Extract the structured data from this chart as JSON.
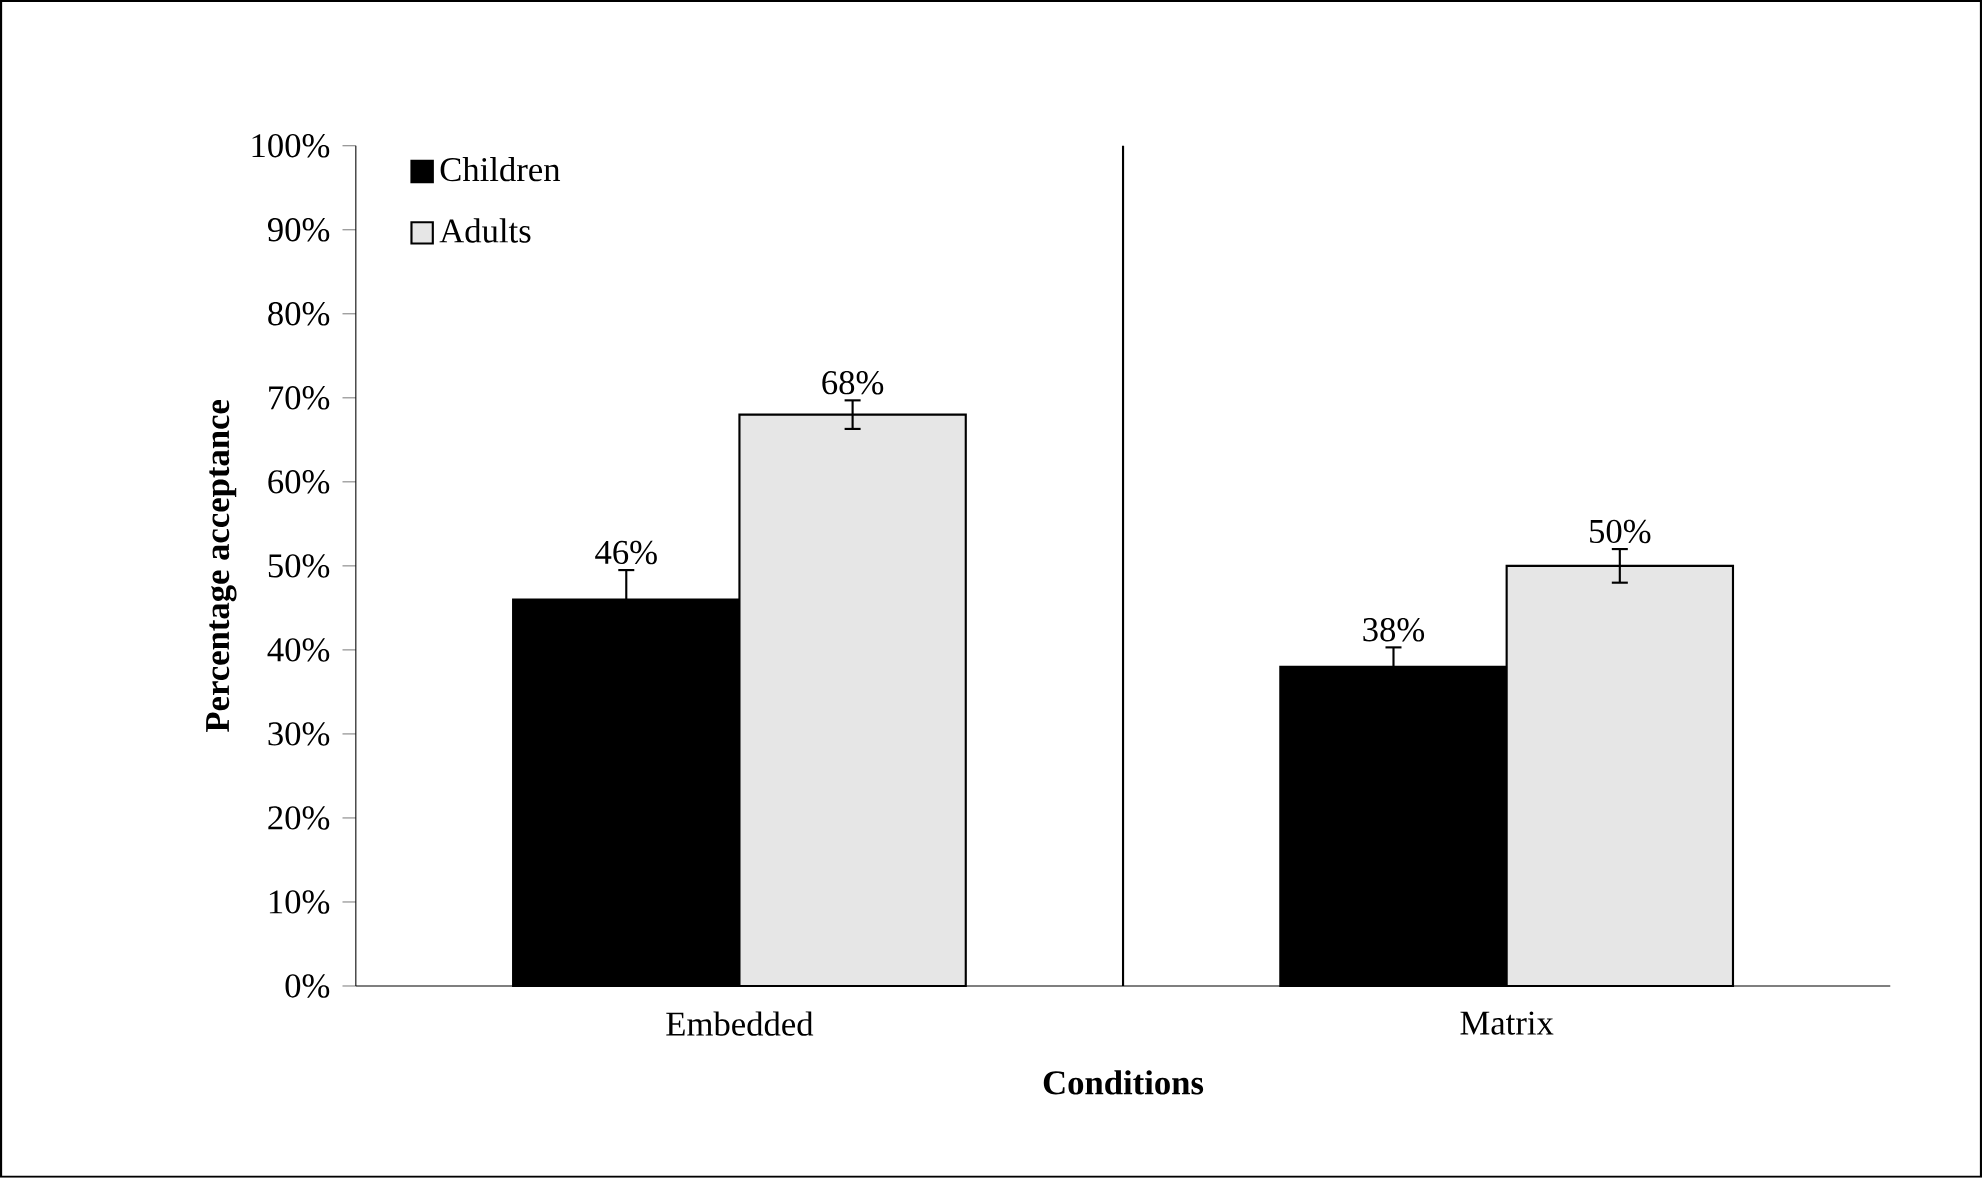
{
  "chart_data": {
    "type": "bar",
    "xlabel": "Conditions",
    "ylabel": "Percentage acceptance",
    "categories": [
      "Embedded",
      "Matrix"
    ],
    "series": [
      {
        "name": "Children",
        "color": "#000000",
        "values": [
          46,
          38
        ],
        "errors": [
          3.5,
          2.3
        ],
        "value_labels": [
          "46%",
          "38%"
        ]
      },
      {
        "name": "Adults",
        "color": "#e6e6e6",
        "values": [
          68,
          50
        ],
        "errors": [
          1.7,
          2.0
        ],
        "value_labels": [
          "68%",
          "50%"
        ]
      }
    ],
    "ylim": [
      0,
      100
    ],
    "yticks": [
      {
        "value": 0,
        "label": "0%"
      },
      {
        "value": 10,
        "label": "10%"
      },
      {
        "value": 20,
        "label": "20%"
      },
      {
        "value": 30,
        "label": "30%"
      },
      {
        "value": 40,
        "label": "40%"
      },
      {
        "value": 50,
        "label": "50%"
      },
      {
        "value": 60,
        "label": "60%"
      },
      {
        "value": 70,
        "label": "70%"
      },
      {
        "value": 80,
        "label": "80%"
      },
      {
        "value": 90,
        "label": "90%"
      },
      {
        "value": 100,
        "label": "100%"
      }
    ],
    "legend": "top left",
    "grid": false
  }
}
